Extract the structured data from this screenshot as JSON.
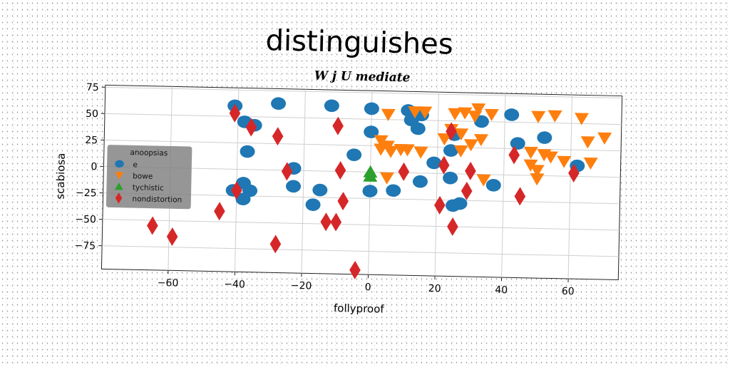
{
  "chart_data": {
    "type": "scatter",
    "title": "distinguishes",
    "subtitle": "W j U mediate",
    "xlabel": "follyproof",
    "ylabel": "scabiosa",
    "xlim": [
      -80,
      75
    ],
    "ylim": [
      -97,
      77
    ],
    "xticks": [
      -60,
      -40,
      -20,
      0,
      20,
      40,
      60
    ],
    "yticks": [
      75,
      50,
      25,
      0,
      -25,
      -50,
      -75
    ],
    "xtick_labels": [
      "−60",
      "−40",
      "−20",
      "0",
      "20",
      "40",
      "60"
    ],
    "ytick_labels": [
      "75",
      "50",
      "25",
      "0",
      "−25",
      "−50",
      "−75"
    ],
    "grid": true,
    "legend": {
      "title": "anoopsias",
      "placement": "center-left",
      "entries": [
        "e",
        "bowe",
        "tychistic",
        "nondistortion"
      ]
    },
    "series": [
      {
        "name": "e",
        "marker": "circle",
        "color": "#1f77b4",
        "points": [
          [
            -41,
            60
          ],
          [
            -28,
            63
          ],
          [
            -12,
            62
          ],
          [
            0,
            60
          ],
          [
            11,
            59
          ],
          [
            15,
            55
          ],
          [
            12,
            50
          ],
          [
            -38,
            45
          ],
          [
            -35,
            42
          ],
          [
            -37,
            17
          ],
          [
            0,
            38
          ],
          [
            14,
            42
          ],
          [
            25,
            37
          ],
          [
            -5,
            16
          ],
          [
            19,
            10
          ],
          [
            24,
            22
          ],
          [
            33,
            50
          ],
          [
            42,
            57
          ],
          [
            44,
            30
          ],
          [
            52,
            36
          ],
          [
            62,
            10
          ],
          [
            -23,
            2
          ],
          [
            -38,
            -13
          ],
          [
            -36,
            -20
          ],
          [
            -41,
            -20
          ],
          [
            -38,
            -28
          ],
          [
            -23,
            -15
          ],
          [
            -15,
            -18
          ],
          [
            -17,
            -32
          ],
          [
            0,
            -18
          ],
          [
            7,
            -17
          ],
          [
            15,
            -8
          ],
          [
            24,
            -4
          ],
          [
            27,
            -28
          ],
          [
            37,
            -10
          ],
          [
            25,
            -30
          ]
        ]
      },
      {
        "name": "bowe",
        "marker": "triangle-down",
        "color": "#ff7f0e",
        "points": [
          [
            5,
            55
          ],
          [
            13,
            58
          ],
          [
            16,
            58
          ],
          [
            25,
            57
          ],
          [
            28,
            58
          ],
          [
            32,
            62
          ],
          [
            31,
            55
          ],
          [
            36,
            57
          ],
          [
            50,
            56
          ],
          [
            55,
            57
          ],
          [
            63,
            55
          ],
          [
            24,
            42
          ],
          [
            27,
            38
          ],
          [
            22,
            33
          ],
          [
            33,
            33
          ],
          [
            3,
            30
          ],
          [
            5,
            25
          ],
          [
            3,
            22
          ],
          [
            6,
            20
          ],
          [
            9,
            22
          ],
          [
            11,
            22
          ],
          [
            15,
            20
          ],
          [
            27,
            22
          ],
          [
            30,
            28
          ],
          [
            48,
            22
          ],
          [
            52,
            20
          ],
          [
            54,
            18
          ],
          [
            58,
            14
          ],
          [
            66,
            13
          ],
          [
            65,
            33
          ],
          [
            70,
            37
          ],
          [
            48,
            10
          ],
          [
            50,
            5
          ],
          [
            5,
            -5
          ],
          [
            34,
            -5
          ],
          [
            50,
            -3
          ]
        ]
      },
      {
        "name": "tychistic",
        "marker": "triangle-up",
        "color": "#2ca02c",
        "points": [
          [
            0,
            0
          ],
          [
            0,
            -4
          ]
        ]
      },
      {
        "name": "nondistortion",
        "marker": "diamond",
        "color": "#d62728",
        "points": [
          [
            -41,
            53
          ],
          [
            -36,
            40
          ],
          [
            -28,
            32
          ],
          [
            -10,
            43
          ],
          [
            24,
            40
          ],
          [
            43,
            19
          ],
          [
            61,
            3
          ],
          [
            -25,
            -1
          ],
          [
            -9,
            1
          ],
          [
            10,
            1
          ],
          [
            22,
            8
          ],
          [
            30,
            3
          ],
          [
            -40,
            -20
          ],
          [
            -8,
            -28
          ],
          [
            21,
            -30
          ],
          [
            29,
            -16
          ],
          [
            45,
            -20
          ],
          [
            -45,
            -40
          ],
          [
            -13,
            -48
          ],
          [
            -10,
            -48
          ],
          [
            25,
            -50
          ],
          [
            -65,
            -55
          ],
          [
            -59,
            -65
          ],
          [
            -28,
            -70
          ],
          [
            -4,
            -93
          ]
        ]
      }
    ]
  }
}
